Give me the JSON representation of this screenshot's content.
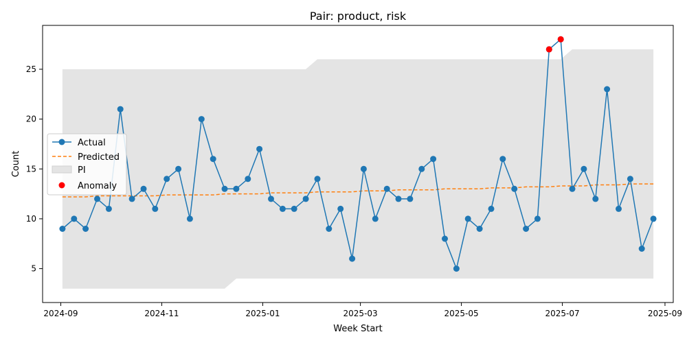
{
  "chart_data": {
    "type": "line",
    "title": "Pair: product, risk",
    "xlabel": "Week Start",
    "ylabel": "Count",
    "x_ticks": [
      "2024-09",
      "2024-11",
      "2025-01",
      "2025-03",
      "2025-05",
      "2025-07",
      "2025-09"
    ],
    "y_ticks": [
      5,
      10,
      15,
      20,
      25
    ],
    "xlim": [
      "2024-08-21",
      "2025-09-06"
    ],
    "ylim": [
      1.6,
      29.4
    ],
    "x": [
      "2024-09-02",
      "2024-09-09",
      "2024-09-16",
      "2024-09-23",
      "2024-09-30",
      "2024-10-07",
      "2024-10-14",
      "2024-10-21",
      "2024-10-28",
      "2024-11-04",
      "2024-11-11",
      "2024-11-18",
      "2024-11-25",
      "2024-12-02",
      "2024-12-09",
      "2024-12-16",
      "2024-12-23",
      "2024-12-30",
      "2025-01-06",
      "2025-01-13",
      "2025-01-20",
      "2025-01-27",
      "2025-02-03",
      "2025-02-10",
      "2025-02-17",
      "2025-02-24",
      "2025-03-03",
      "2025-03-10",
      "2025-03-17",
      "2025-03-24",
      "2025-03-31",
      "2025-04-07",
      "2025-04-14",
      "2025-04-21",
      "2025-04-28",
      "2025-05-05",
      "2025-05-12",
      "2025-05-19",
      "2025-05-26",
      "2025-06-02",
      "2025-06-09",
      "2025-06-16",
      "2025-06-23",
      "2025-06-30",
      "2025-07-07",
      "2025-07-14",
      "2025-07-21",
      "2025-07-28",
      "2025-08-04",
      "2025-08-11",
      "2025-08-18",
      "2025-08-25"
    ],
    "series": [
      {
        "name": "Actual",
        "color": "#1f77b4",
        "style": "solid line with circle markers",
        "values": [
          9,
          10,
          9,
          12,
          11,
          21,
          12,
          13,
          11,
          14,
          15,
          10,
          20,
          16,
          13,
          13,
          14,
          17,
          12,
          11,
          11,
          12,
          14,
          9,
          11,
          6,
          15,
          10,
          13,
          12,
          12,
          15,
          16,
          8,
          5,
          10,
          9,
          11,
          16,
          13,
          9,
          10,
          27,
          28,
          13,
          15,
          12,
          23,
          11,
          14,
          7,
          10
        ]
      },
      {
        "name": "Predicted",
        "color": "#ff7f0e",
        "style": "dashed",
        "values": [
          12.2,
          12.2,
          12.2,
          12.3,
          12.3,
          12.3,
          12.3,
          12.3,
          12.3,
          12.4,
          12.4,
          12.4,
          12.4,
          12.4,
          12.5,
          12.5,
          12.5,
          12.5,
          12.6,
          12.6,
          12.6,
          12.6,
          12.7,
          12.7,
          12.7,
          12.7,
          12.8,
          12.8,
          12.8,
          12.9,
          12.9,
          12.9,
          12.9,
          13.0,
          13.0,
          13.0,
          13.0,
          13.1,
          13.1,
          13.1,
          13.2,
          13.2,
          13.2,
          13.3,
          13.3,
          13.3,
          13.4,
          13.4,
          13.4,
          13.5,
          13.5,
          13.5
        ]
      }
    ],
    "pi": {
      "name": "PI",
      "color": "#e4e4e4",
      "lower": [
        3,
        3,
        3,
        3,
        3,
        3,
        3,
        3,
        3,
        3,
        3,
        3,
        3,
        3,
        3,
        4,
        4,
        4,
        4,
        4,
        4,
        4,
        4,
        4,
        4,
        4,
        4,
        4,
        4,
        4,
        4,
        4,
        4,
        4,
        4,
        4,
        4,
        4,
        4,
        4,
        4,
        4,
        4,
        4,
        4,
        4,
        4,
        4,
        4,
        4,
        4,
        4
      ],
      "upper": [
        25,
        25,
        25,
        25,
        25,
        25,
        25,
        25,
        25,
        25,
        25,
        25,
        25,
        25,
        25,
        25,
        25,
        25,
        25,
        25,
        25,
        25,
        26,
        26,
        26,
        26,
        26,
        26,
        26,
        26,
        26,
        26,
        26,
        26,
        26,
        26,
        26,
        26,
        26,
        26,
        26,
        26,
        26,
        26,
        27,
        27,
        27,
        27,
        27,
        27,
        27,
        27
      ]
    },
    "anomalies": {
      "name": "Anomaly",
      "color": "#ff0000",
      "x": [
        "2025-06-23",
        "2025-06-30"
      ],
      "values": [
        27,
        28
      ]
    },
    "legend_position": "center-left",
    "grid": false
  }
}
